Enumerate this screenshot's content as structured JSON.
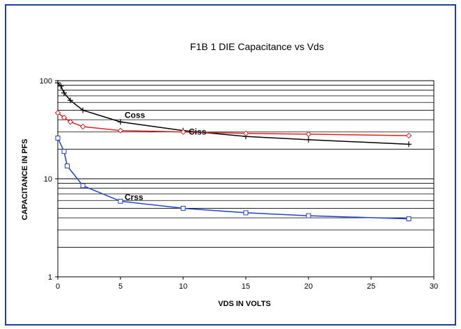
{
  "chart_data": {
    "type": "line",
    "title": "F1B 1 DIE Capacitance vs Vds",
    "xlabel": "VDS IN VOLTS",
    "ylabel": "CAPACITANCE IN PFS",
    "xlim": [
      0,
      30
    ],
    "ylim": [
      1,
      100
    ],
    "y_scale": "log",
    "grid": true,
    "x_ticks": [
      "0",
      "5",
      "10",
      "15",
      "20",
      "25",
      "30"
    ],
    "y_ticks": [
      "1",
      "10",
      "100"
    ],
    "series": [
      {
        "name": "Coss",
        "color": "#000000",
        "marker": "plus",
        "x": [
          0,
          0.25,
          0.5,
          1,
          2,
          5,
          10,
          15,
          20,
          28
        ],
        "y": [
          95,
          88,
          75,
          63,
          50,
          38,
          31,
          27,
          25,
          22.5
        ]
      },
      {
        "name": "Ciss",
        "color": "#e02020",
        "marker": "diamond",
        "x": [
          0,
          0.5,
          1,
          2,
          5,
          10,
          15,
          20,
          28
        ],
        "y": [
          47,
          42,
          38,
          34,
          31,
          30,
          29,
          28.5,
          27.5
        ]
      },
      {
        "name": "Crss",
        "color": "#1f3fcf",
        "marker": "square",
        "x": [
          0,
          0.5,
          0.75,
          2,
          5,
          10,
          15,
          20,
          28
        ],
        "y": [
          26,
          19,
          13.5,
          8.5,
          5.9,
          5,
          4.5,
          4.2,
          3.9
        ]
      }
    ]
  }
}
